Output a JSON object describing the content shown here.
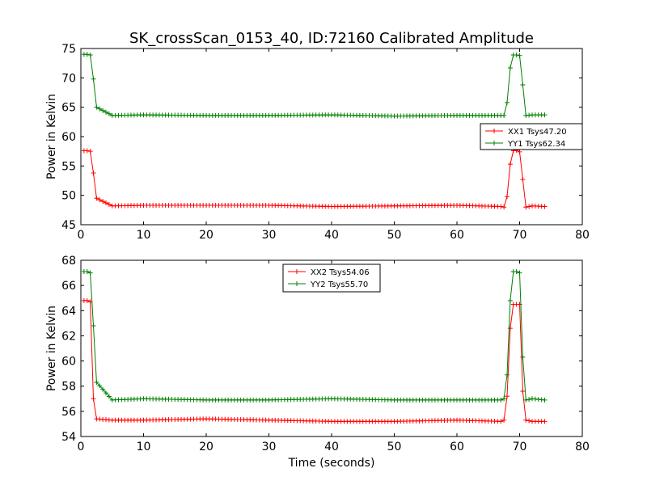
{
  "figure_title": "SK_crossScan_0153_40, ID:72160 Calibrated Amplitude",
  "colors": {
    "xx": "#ff0000",
    "yy": "#008000",
    "axes": "#000000",
    "background": "#ffffff"
  },
  "chart_data": [
    {
      "type": "line",
      "title": "SK_crossScan_0153_40, ID:72160 Calibrated Amplitude",
      "xlabel": "",
      "ylabel": "Power in Kelvin",
      "xlim": [
        0,
        80
      ],
      "ylim": [
        45,
        75
      ],
      "xticks": [
        0,
        10,
        20,
        30,
        40,
        50,
        60,
        70,
        80
      ],
      "yticks": [
        45,
        50,
        55,
        60,
        65,
        70,
        75
      ],
      "grid": false,
      "legend_position": "center-right",
      "series": [
        {
          "name": "XX1 Tsys47.20",
          "color": "#ff0000",
          "marker": "+",
          "x": [
            0.5,
            1.0,
            1.5,
            2.0,
            2.5,
            5.0,
            10.0,
            20.0,
            30.0,
            40.0,
            50.0,
            60.0,
            67.0,
            67.5,
            68.0,
            68.5,
            69.0,
            69.5,
            70.0,
            70.5,
            71.0,
            72.0,
            74.0
          ],
          "values": [
            57.6,
            57.6,
            57.5,
            53.8,
            49.5,
            48.2,
            48.3,
            48.3,
            48.3,
            48.1,
            48.2,
            48.3,
            48.1,
            48.0,
            49.8,
            55.3,
            57.6,
            57.7,
            57.4,
            52.7,
            48.0,
            48.2,
            48.1
          ]
        },
        {
          "name": "YY1 Tsys62.34",
          "color": "#008000",
          "marker": "+",
          "x": [
            0.5,
            1.0,
            1.5,
            2.0,
            2.5,
            5.0,
            10.0,
            20.0,
            30.0,
            40.0,
            50.0,
            60.0,
            67.0,
            67.5,
            68.0,
            68.5,
            69.0,
            69.5,
            70.0,
            70.5,
            71.0,
            72.0,
            74.0
          ],
          "values": [
            74.0,
            74.0,
            73.9,
            69.8,
            65.0,
            63.6,
            63.7,
            63.6,
            63.6,
            63.7,
            63.5,
            63.6,
            63.6,
            63.6,
            65.8,
            71.7,
            73.9,
            73.9,
            73.8,
            68.8,
            63.6,
            63.7,
            63.7
          ]
        }
      ]
    },
    {
      "type": "line",
      "title": "",
      "xlabel": "Time (seconds)",
      "ylabel": "Power in Kelvin",
      "xlim": [
        0,
        80
      ],
      "ylim": [
        54,
        68
      ],
      "xticks": [
        0,
        10,
        20,
        30,
        40,
        50,
        60,
        70,
        80
      ],
      "yticks": [
        54,
        56,
        58,
        60,
        62,
        64,
        66,
        68
      ],
      "grid": false,
      "legend_position": "top-center",
      "series": [
        {
          "name": "XX2 Tsys54.06",
          "color": "#ff0000",
          "marker": "+",
          "x": [
            0.5,
            1.0,
            1.5,
            2.0,
            2.5,
            5.0,
            10.0,
            20.0,
            30.0,
            40.0,
            50.0,
            60.0,
            67.0,
            67.5,
            68.0,
            68.5,
            69.0,
            69.5,
            70.0,
            70.5,
            71.0,
            72.0,
            74.0
          ],
          "values": [
            64.8,
            64.8,
            64.7,
            57.0,
            55.4,
            55.3,
            55.3,
            55.4,
            55.3,
            55.2,
            55.2,
            55.3,
            55.2,
            55.3,
            57.2,
            62.6,
            64.5,
            64.5,
            64.5,
            57.6,
            55.3,
            55.2,
            55.2
          ]
        },
        {
          "name": "YY2 Tsys55.70",
          "color": "#008000",
          "marker": "+",
          "x": [
            0.5,
            1.0,
            1.5,
            2.0,
            2.5,
            5.0,
            10.0,
            20.0,
            30.0,
            40.0,
            50.0,
            60.0,
            67.0,
            67.5,
            68.0,
            68.5,
            69.0,
            69.5,
            70.0,
            70.5,
            71.0,
            72.0,
            74.0
          ],
          "values": [
            67.1,
            67.1,
            67.0,
            62.8,
            58.3,
            56.9,
            57.0,
            56.9,
            56.9,
            57.0,
            56.9,
            56.9,
            56.9,
            57.0,
            58.9,
            64.8,
            67.1,
            67.1,
            67.0,
            60.3,
            56.9,
            57.0,
            56.9
          ]
        }
      ]
    }
  ]
}
